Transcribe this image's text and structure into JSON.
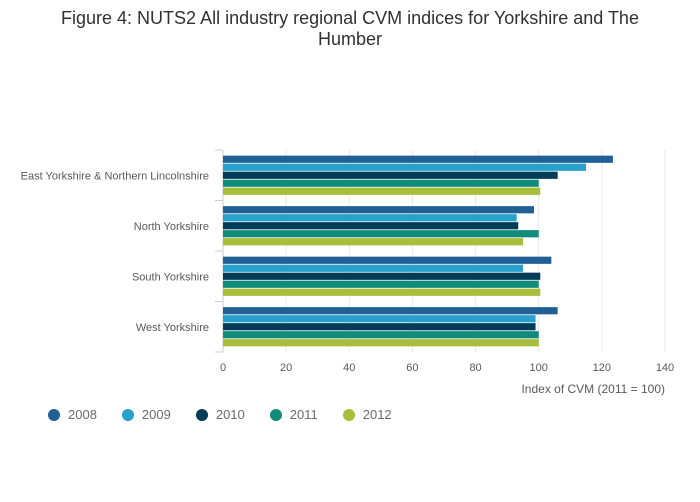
{
  "title_line1": "Figure 4: NUTS2 All industry regional CVM indices for Yorkshire and The",
  "title_line2": "Humber",
  "chart_data": {
    "type": "bar",
    "orientation": "horizontal",
    "title": "Figure 4: NUTS2 All industry regional CVM indices for Yorkshire and The Humber",
    "categories": [
      "East Yorkshire & Northern Lincolnshire",
      "North Yorkshire",
      "South Yorkshire",
      "West Yorkshire"
    ],
    "series": [
      {
        "name": "2008",
        "color": "#206095",
        "values": [
          123.5,
          98.5,
          104,
          106
        ]
      },
      {
        "name": "2009",
        "color": "#27a0cc",
        "values": [
          115,
          93,
          95,
          99
        ]
      },
      {
        "name": "2010",
        "color": "#003c57",
        "values": [
          106,
          93.5,
          100.5,
          99
        ]
      },
      {
        "name": "2011",
        "color": "#118c7b",
        "values": [
          100,
          100,
          100,
          100
        ]
      },
      {
        "name": "2012",
        "color": "#a8bd3a",
        "values": [
          100.5,
          95,
          100.5,
          100
        ]
      }
    ],
    "xlabel": "Index of CVM (2011 = 100)",
    "ylabel": "",
    "xlim": [
      0,
      140
    ],
    "xticks": [
      0,
      20,
      40,
      60,
      80,
      100,
      120,
      140
    ],
    "grid": true,
    "legend_position": "bottom-left"
  }
}
